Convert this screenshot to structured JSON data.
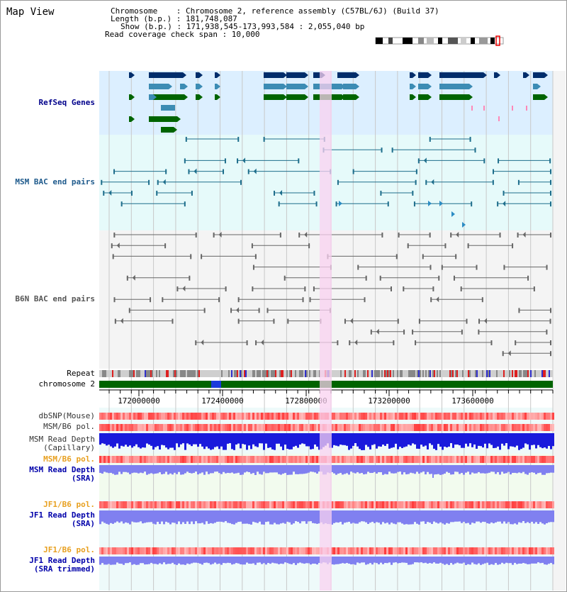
{
  "title": "Map View",
  "info": {
    "chromosome_line": "Chromosome    : Chromosome 2, reference assembly (C57BL/6J) (Build 37)",
    "length_line": "Length (b.p.) : 181,748,087",
    "show_line": "Show (b.p.) : 171,938,545-173,993,584 : 2,055,040 bp",
    "coverage_line": "Read coverage check span : 10,000"
  },
  "tracks": {
    "refseq": "RefSeq Genes",
    "msm_bac": "MSM BAC end pairs",
    "b6n_bac": "B6N BAC end pairs",
    "repeat": "Repeat",
    "chromosome": "chromosome 2",
    "dbsnp": "dbSNP(Mouse)",
    "msm_b6_pol": "MSM/B6 pol.",
    "msm_depth_cap_1": "MSM Read Depth",
    "msm_depth_cap_2": "(Capillary)",
    "msm_b6_pol_2": "MSM/B6 pol.",
    "msm_depth_sra_1": "MSM Read Depth",
    "msm_depth_sra_2": "(SRA)",
    "jf1_b6_pol": "JF1/B6 pol.",
    "jf1_depth_sra_1": "JF1 Read Depth",
    "jf1_depth_sra_2": "(SRA)",
    "jf1_b6_pol_2": "JF1/B6 pol.",
    "jf1_depth_trim_1": "JF1 Read Depth",
    "jf1_depth_trim_2": "(SRA trimmed)"
  },
  "axis": {
    "ticks": [
      "172000000",
      "172400000",
      "172800000",
      "173200000",
      "173600000"
    ]
  },
  "colors": {
    "refseq_bg": "#dcefff",
    "msm_bac_bg": "#e6fafa",
    "b6n_bg": "#f4f4f4",
    "highlight": "#f9d2f0",
    "gene_dark": "#002d6b",
    "gene_mid": "#3c8cb4",
    "gene_green": "#006400",
    "msm_bac_line": "#1e6e8c",
    "b6n_line": "#666666",
    "chromosome": "#006400",
    "pol_red": "#e83c3c",
    "depth_blue": "#1a1adc",
    "depth_light": "#8080f0",
    "orange_label": "#e8a020",
    "blue_label": "#0000aa"
  }
}
